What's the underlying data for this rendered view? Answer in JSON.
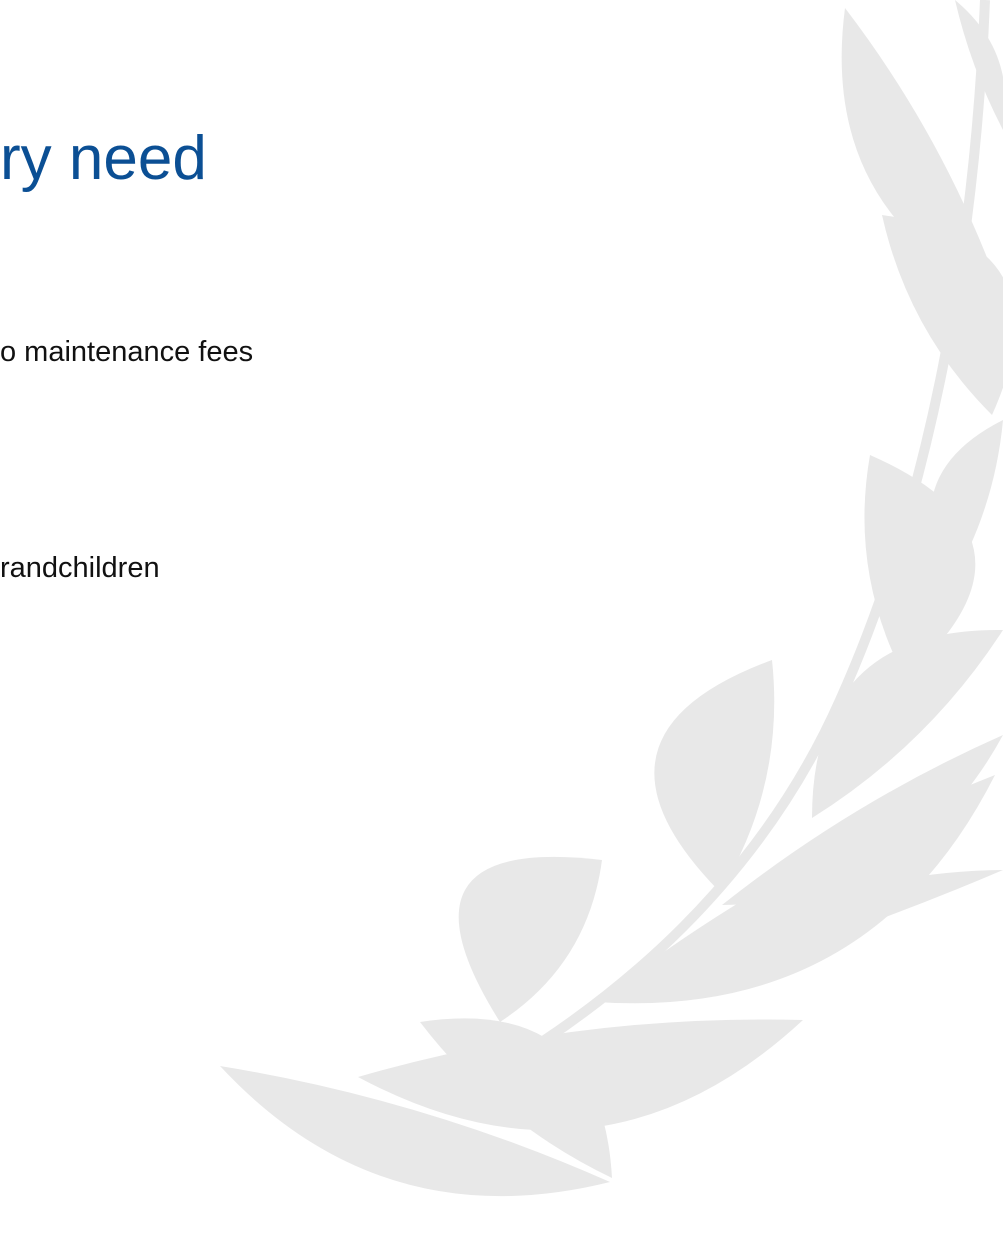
{
  "title": "ry need",
  "bullets": [
    "o maintenance fees",
    "randchildren"
  ]
}
